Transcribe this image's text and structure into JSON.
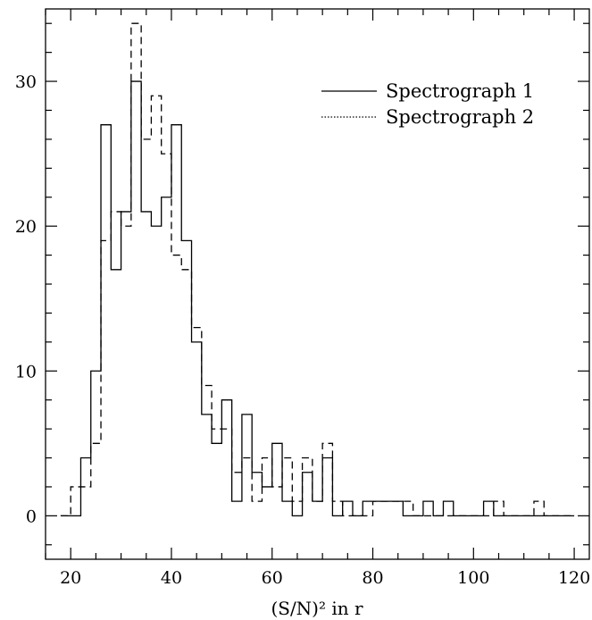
{
  "chart_data": {
    "type": "histogram",
    "xlabel": "(S/N)² in r",
    "ylabel": "",
    "xlim": [
      15,
      123
    ],
    "ylim": [
      -3,
      35
    ],
    "grid": false,
    "legend_position": "top-right",
    "bin_edges": [
      20,
      22,
      24,
      26,
      28,
      30,
      32,
      34,
      36,
      38,
      40,
      42,
      44,
      46,
      48,
      50,
      52,
      54,
      56,
      58,
      60,
      62,
      64,
      66,
      68,
      70,
      72,
      74,
      76,
      78,
      80,
      82,
      84,
      86,
      88,
      90,
      92,
      94,
      96,
      98,
      100,
      102,
      104,
      106,
      108,
      110,
      112,
      114,
      116,
      118,
      120
    ],
    "x_ticks": [
      20,
      40,
      60,
      80,
      100,
      120
    ],
    "y_ticks": [
      0,
      10,
      20,
      30
    ],
    "series": [
      {
        "name": "Spectrograph 1",
        "style": "solid",
        "color": "#000000",
        "values": [
          0,
          4,
          10,
          27,
          17,
          21,
          30,
          21,
          20,
          22,
          27,
          19,
          12,
          7,
          5,
          8,
          1,
          7,
          3,
          2,
          5,
          1,
          0,
          3,
          1,
          4,
          0,
          1,
          0,
          1,
          1,
          1,
          1,
          0,
          0,
          1,
          0,
          1,
          0,
          0,
          0,
          1,
          0,
          0,
          0,
          0,
          0,
          0,
          0,
          0
        ]
      },
      {
        "name": "Spectrograph 2",
        "style": "dashed",
        "color": "#000000",
        "values": [
          2,
          2,
          5,
          19,
          21,
          20,
          34,
          26,
          29,
          25,
          18,
          17,
          13,
          9,
          6,
          6,
          3,
          4,
          1,
          4,
          2,
          4,
          1,
          4,
          1,
          5,
          1,
          0,
          0,
          0,
          1,
          1,
          1,
          1,
          0,
          0,
          0,
          0,
          0,
          0,
          0,
          0,
          1,
          0,
          0,
          0,
          1,
          0,
          0,
          0
        ]
      }
    ],
    "legend": [
      {
        "label": "Spectrograph 1"
      },
      {
        "label": "Spectrograph 2"
      }
    ]
  }
}
